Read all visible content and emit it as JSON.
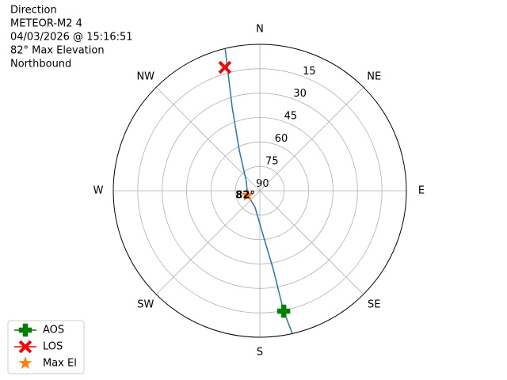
{
  "chart_data": {
    "type": "polar",
    "title_lines": [
      "Direction",
      "METEOR-M2 4",
      "04/03/2026 @ 15:16:51",
      "82° Max Elevation",
      "Northbound"
    ],
    "rlim": [
      90,
      0
    ],
    "rticks": [
      15,
      30,
      45,
      60,
      75,
      90
    ],
    "theta_ticks": [
      {
        "value": 0,
        "label": "N"
      },
      {
        "value": 45,
        "label": "NE"
      },
      {
        "value": 90,
        "label": "E"
      },
      {
        "value": 135,
        "label": "SE"
      },
      {
        "value": 180,
        "label": "S"
      },
      {
        "value": 225,
        "label": "SW"
      },
      {
        "value": 270,
        "label": "W"
      },
      {
        "value": 315,
        "label": "NW"
      }
    ],
    "grid": true,
    "track": {
      "color": "#1f77b4",
      "azimuth": [
        167.2,
        168.8,
        170.3,
        175.2,
        195.9,
        254,
        303,
        333,
        341.7,
        346.3
      ],
      "elevation": [
        0,
        14.6,
        41.2,
        61.2,
        79.4,
        82,
        80.2,
        62.2,
        35.7,
        0
      ]
    },
    "markers": [
      {
        "name": "AOS",
        "color": "#008000",
        "shape": "plus",
        "azimuth": 168.8,
        "elevation": 14.6
      },
      {
        "name": "LOS",
        "color": "#ff0000",
        "shape": "x",
        "azimuth": 344.2,
        "elevation": 11.2
      },
      {
        "name": "Max El",
        "color": "#ff7f0e",
        "shape": "star",
        "azimuth": 249.4,
        "elevation": 82,
        "label": "82°"
      }
    ],
    "legend": "lower left"
  }
}
